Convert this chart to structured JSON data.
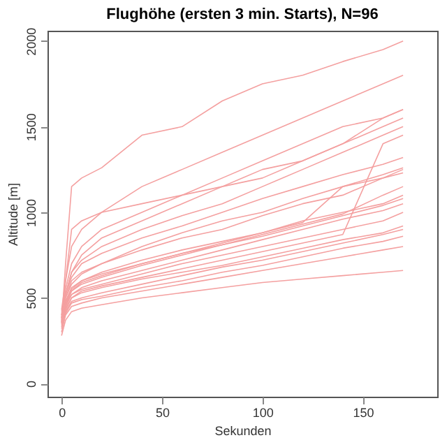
{
  "chart_data": {
    "type": "line",
    "title": "Flughöhe (ersten 3 min. Starts), N=96",
    "xlabel": "Sekunden",
    "ylabel": "Altitude [m]",
    "x": [
      0,
      2,
      5,
      10,
      20,
      40,
      60,
      80,
      100,
      120,
      140,
      160,
      170
    ],
    "xlim": [
      -7,
      187
    ],
    "xticks": [
      0,
      50,
      100,
      150
    ],
    "ylim": [
      -77,
      2060
    ],
    "yticks": [
      0,
      500,
      1000,
      1500,
      2000
    ],
    "grid": false,
    "legend": false,
    "line_style": "solid",
    "marker": "none",
    "series": [
      {
        "color": "#f4a0a0",
        "values": [
          350,
          700,
          1150,
          1200,
          1260,
          1450,
          1500,
          1650,
          1750,
          1800,
          1880,
          1950,
          2000
        ]
      },
      {
        "color": "#f4a0a0",
        "values": [
          380,
          600,
          800,
          900,
          1000,
          1150,
          1250,
          1350,
          1450,
          1550,
          1650,
          1750,
          1800
        ]
      },
      {
        "color": "#f4a0a0",
        "values": [
          400,
          550,
          700,
          800,
          900,
          1000,
          1100,
          1200,
          1300,
          1400,
          1500,
          1550,
          1600
        ]
      },
      {
        "color": "#f4a0a0",
        "values": [
          420,
          520,
          650,
          720,
          800,
          900,
          980,
          1050,
          1150,
          1250,
          1350,
          1450,
          1500
        ]
      },
      {
        "color": "#f4a0a0",
        "values": [
          380,
          500,
          600,
          650,
          700,
          780,
          850,
          900,
          980,
          1050,
          1100,
          1200,
          1250
        ]
      },
      {
        "color": "#f4a0a0",
        "values": [
          400,
          480,
          550,
          600,
          650,
          720,
          780,
          830,
          880,
          950,
          1000,
          1050,
          1100
        ]
      },
      {
        "color": "#f4a0a0",
        "values": [
          360,
          450,
          520,
          550,
          580,
          640,
          700,
          750,
          800,
          850,
          900,
          950,
          1000
        ]
      },
      {
        "color": "#f4a0a0",
        "values": [
          330,
          420,
          480,
          500,
          530,
          580,
          630,
          680,
          720,
          770,
          820,
          870,
          900
        ]
      },
      {
        "color": "#f4a0a0",
        "values": [
          300,
          400,
          450,
          470,
          500,
          540,
          580,
          620,
          660,
          700,
          740,
          780,
          800
        ]
      },
      {
        "color": "#f4a0a0",
        "values": [
          340,
          430,
          500,
          530,
          560,
          610,
          650,
          690,
          740,
          790,
          840,
          880,
          920
        ]
      },
      {
        "color": "#f4a0a0",
        "values": [
          370,
          460,
          540,
          590,
          630,
          700,
          760,
          810,
          860,
          920,
          980,
          1040,
          1080
        ]
      },
      {
        "color": "#f4a0a0",
        "values": [
          410,
          500,
          580,
          640,
          700,
          800,
          880,
          950,
          1000,
          1080,
          1150,
          1220,
          1260
        ]
      },
      {
        "color": "#f4a0a0",
        "values": [
          390,
          520,
          620,
          700,
          760,
          850,
          920,
          1000,
          1080,
          1150,
          1220,
          1280,
          1320
        ]
      },
      {
        "color": "#f4a0a0",
        "values": [
          360,
          480,
          560,
          600,
          640,
          700,
          760,
          820,
          880,
          940,
          1150,
          1200,
          1230
        ]
      },
      {
        "color": "#f4a0a0",
        "values": [
          350,
          440,
          500,
          540,
          570,
          620,
          670,
          720,
          770,
          820,
          870,
          1400,
          1450
        ]
      },
      {
        "color": "#f4a0a0",
        "values": [
          380,
          520,
          650,
          750,
          850,
          950,
          1050,
          1150,
          1250,
          1300,
          1400,
          1550,
          1600
        ]
      },
      {
        "color": "#f4a0a0",
        "values": [
          320,
          410,
          470,
          490,
          510,
          560,
          600,
          650,
          690,
          740,
          790,
          830,
          860
        ]
      },
      {
        "color": "#f4a0a0",
        "values": [
          400,
          460,
          520,
          560,
          600,
          660,
          720,
          780,
          840,
          900,
          960,
          1010,
          1050
        ]
      },
      {
        "color": "#f4a0a0",
        "values": [
          430,
          600,
          900,
          950,
          1000,
          1050,
          1100,
          1150,
          1200,
          1300,
          1400,
          1500,
          1550
        ]
      },
      {
        "color": "#f4a0a0",
        "values": [
          370,
          470,
          540,
          580,
          620,
          690,
          750,
          810,
          870,
          930,
          990,
          1100,
          1150
        ]
      },
      {
        "color": "#f4a0a0",
        "values": [
          280,
          370,
          420,
          440,
          460,
          500,
          530,
          560,
          590,
          610,
          630,
          650,
          660
        ]
      }
    ]
  }
}
